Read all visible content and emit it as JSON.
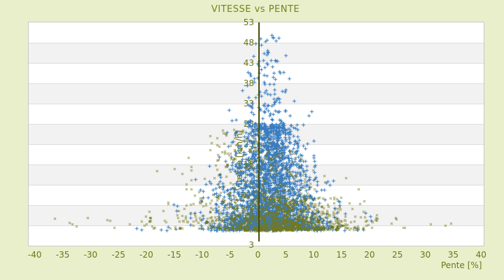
{
  "page": {
    "background": "#e9efcb",
    "title_color": "#76821c",
    "tick_text_color": "#6b7618",
    "axis_line_color": "#454f0a",
    "band_white": "#ffffff",
    "band_gray": "#f2f2f2",
    "plot_border": "#c9c9c9"
  },
  "chart_data": {
    "type": "scatter",
    "title": "VITESSE vs PENTE",
    "xlabel": "Pente [%]",
    "ylabel": "Vitesse [km/h]",
    "xlim": [
      -40,
      40
    ],
    "ylim": [
      3,
      53
    ],
    "x_ticks": [
      -40,
      -35,
      -30,
      -25,
      -20,
      -15,
      -10,
      -5,
      0,
      5,
      10,
      15,
      20,
      25,
      30,
      35,
      40
    ],
    "y_ticks": [
      53,
      48,
      43,
      38,
      33,
      28,
      23,
      18,
      13,
      8,
      3
    ],
    "y_axis_bottom_label": "3",
    "grid": "alternating-horizontal-bands",
    "legend": "none",
    "series": [
      {
        "name": "vitesse-points-blue",
        "marker": "plus",
        "color": "#3a7dc0",
        "seed": 987,
        "clusters": [
          {
            "kind": "core",
            "n": 2400,
            "speed_base": 2.2,
            "speed_span": 26,
            "speed_exp": 2.1,
            "slope_mean": 2.2,
            "slope_sigma": 4.3,
            "taper_span": 55
          },
          {
            "kind": "wide-low",
            "n": 430,
            "speed_base": 1.8,
            "speed_span": 17,
            "speed_exp": 2.0,
            "slope_mean": 0.5,
            "slope_sigma": 7.8,
            "taper_span": 36
          },
          {
            "kind": "high-column",
            "n": 150,
            "speed_base": 26,
            "speed_span": 24,
            "speed_exp": 1.7,
            "slope_mean": 1.6,
            "slope_sigma": 3.4,
            "taper_span": 37
          }
        ]
      },
      {
        "name": "vitesse-points-olive",
        "marker": "x",
        "color": "#74781a",
        "seed": 3021,
        "clusters": [
          {
            "kind": "wings",
            "n": 480,
            "speed_base": 2.3,
            "speed_span": 20,
            "speed_exp": 2.4,
            "slope_mean": 1.0,
            "slope_sigma": 9.5,
            "taper_span": 27
          },
          {
            "kind": "center-bottom",
            "n": 300,
            "speed_base": 1.7,
            "speed_span": 9,
            "speed_exp": 2.0,
            "slope_mean": 2.0,
            "slope_sigma": 3.6,
            "taper_span": 45
          },
          {
            "kind": "left-mid",
            "n": 230,
            "speed_base": 4.0,
            "speed_span": 23,
            "speed_exp": 1.9,
            "slope_mean": -4.0,
            "slope_sigma": 7.0,
            "taper_span": 36
          },
          {
            "kind": "right-bottom",
            "n": 380,
            "speed_base": 2.0,
            "speed_span": 8,
            "speed_exp": 2.2,
            "slope_mean": 8.0,
            "slope_sigma": 4.8,
            "taper_span": 80
          },
          {
            "kind": "far-outliers",
            "type": "wings_uniform",
            "n": 22,
            "speed_base": 2.8,
            "speed_span": 2.2,
            "slope_min": 19,
            "slope_wing_span": 18,
            "slope_exp": 1.6
          }
        ]
      }
    ]
  }
}
